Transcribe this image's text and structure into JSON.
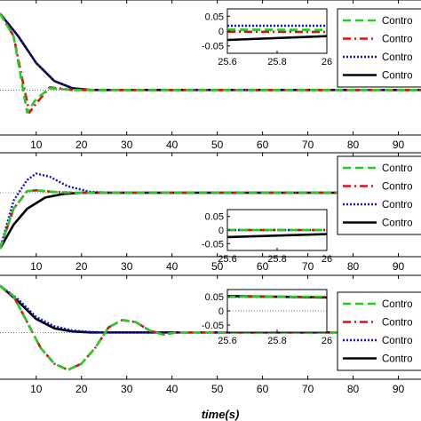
{
  "colors": {
    "series": [
      "#22cc22",
      "#dd1111",
      "#1111cc",
      "#000000"
    ],
    "axis": "#000000",
    "ref": "#555555"
  },
  "chart_data": [
    {
      "type": "line",
      "panel": 1,
      "xlim": [
        2,
        95
      ],
      "xticks": [
        "10",
        "20",
        "30",
        "40",
        "50",
        "60",
        "70",
        "80",
        "90"
      ],
      "xtick_values": [
        10,
        20,
        30,
        40,
        50,
        60,
        70,
        80,
        90
      ],
      "ylim": [
        -0.5,
        1.0
      ],
      "grid": false,
      "legend": {
        "placement": "top-right",
        "entries": [
          "Contro",
          "Contro",
          "Contro",
          "Contro"
        ]
      },
      "series": [
        {
          "values": [
            [
              2,
              0.85
            ],
            [
              5,
              0.6
            ],
            [
              8,
              -0.25
            ],
            [
              10,
              -0.1
            ],
            [
              13,
              0.02
            ],
            [
              18,
              0.0
            ],
            [
              95,
              0.0
            ]
          ]
        },
        {
          "values": [
            [
              2,
              0.85
            ],
            [
              5,
              0.6
            ],
            [
              7,
              0.1
            ],
            [
              8.5,
              -0.25
            ],
            [
              10,
              -0.15
            ],
            [
              13,
              0.03
            ],
            [
              18,
              0.0
            ],
            [
              95,
              0.0
            ]
          ]
        },
        {
          "values": [
            [
              2,
              0.85
            ],
            [
              6,
              0.6
            ],
            [
              10,
              0.3
            ],
            [
              14,
              0.1
            ],
            [
              18,
              0.02
            ],
            [
              22,
              0.0
            ],
            [
              95,
              0.0
            ]
          ]
        },
        {
          "values": [
            [
              2,
              0.85
            ],
            [
              6,
              0.6
            ],
            [
              10,
              0.3
            ],
            [
              14,
              0.1
            ],
            [
              18,
              0.02
            ],
            [
              22,
              0.0
            ],
            [
              95,
              0.0
            ]
          ]
        }
      ],
      "inset": {
        "xticks": [
          "25.6",
          "25.8",
          "26"
        ],
        "xtick_values": [
          25.6,
          25.8,
          26.0
        ],
        "xlim": [
          25.6,
          26.0
        ],
        "yticks": [
          "0.05",
          "0",
          "-0.05"
        ],
        "ytick_values": [
          0.05,
          0,
          -0.05
        ],
        "ylim": [
          -0.075,
          0.075
        ],
        "series": [
          {
            "values": [
              [
                25.6,
                0.005
              ],
              [
                26.0,
                0.004
              ]
            ]
          },
          {
            "values": [
              [
                25.6,
                -0.002
              ],
              [
                26.0,
                -0.003
              ]
            ]
          },
          {
            "values": [
              [
                25.6,
                0.018
              ],
              [
                26.0,
                0.018
              ]
            ]
          },
          {
            "values": [
              [
                25.6,
                -0.03
              ],
              [
                26.0,
                -0.017
              ]
            ]
          }
        ]
      }
    },
    {
      "type": "line",
      "panel": 2,
      "xlim": [
        2,
        95
      ],
      "xticks": [
        "10",
        "20",
        "30",
        "40",
        "50",
        "60",
        "70",
        "80",
        "90"
      ],
      "xtick_values": [
        10,
        20,
        30,
        40,
        50,
        60,
        70,
        80,
        90
      ],
      "ylim": [
        -0.8,
        0.5
      ],
      "grid": false,
      "legend": {
        "placement": "top-right",
        "entries": [
          "Contro",
          "Contro",
          "Contro",
          "Contro"
        ]
      },
      "series": [
        {
          "values": [
            [
              2,
              -0.7
            ],
            [
              5,
              -0.2
            ],
            [
              8,
              0.02
            ],
            [
              10,
              0.03
            ],
            [
              14,
              0.01
            ],
            [
              18,
              0.0
            ],
            [
              95,
              0.0
            ]
          ]
        },
        {
          "values": [
            [
              2,
              -0.7
            ],
            [
              5,
              -0.2
            ],
            [
              8,
              0.02
            ],
            [
              10,
              0.03
            ],
            [
              14,
              0.01
            ],
            [
              18,
              0.0
            ],
            [
              95,
              0.0
            ]
          ]
        },
        {
          "values": [
            [
              2,
              -0.7
            ],
            [
              5,
              -0.1
            ],
            [
              8,
              0.16
            ],
            [
              10,
              0.24
            ],
            [
              13,
              0.2
            ],
            [
              17,
              0.08
            ],
            [
              22,
              0.01
            ],
            [
              27,
              0.0
            ],
            [
              95,
              0.0
            ]
          ]
        },
        {
          "values": [
            [
              2,
              -0.7
            ],
            [
              5,
              -0.4
            ],
            [
              8,
              -0.2
            ],
            [
              12,
              -0.06
            ],
            [
              16,
              -0.015
            ],
            [
              20,
              0.0
            ],
            [
              95,
              0.0
            ]
          ]
        }
      ],
      "inset": {
        "xticks": [
          "25.6",
          "25.8",
          "26"
        ],
        "xtick_values": [
          25.6,
          25.8,
          26.0
        ],
        "xlim": [
          25.6,
          26.0
        ],
        "yticks": [
          "0.05",
          "0",
          "-0.05"
        ],
        "ytick_values": [
          0.05,
          0,
          -0.05
        ],
        "ylim": [
          -0.075,
          0.075
        ],
        "series": [
          {
            "values": [
              [
                25.6,
                0.0
              ],
              [
                26.0,
                0.0
              ]
            ]
          },
          {
            "values": [
              [
                25.6,
                0.0
              ],
              [
                26.0,
                0.0
              ]
            ]
          },
          {
            "values": [
              [
                25.6,
                0.0
              ],
              [
                26.0,
                0.0
              ]
            ]
          },
          {
            "values": [
              [
                25.6,
                -0.026
              ],
              [
                26.0,
                -0.015
              ]
            ]
          }
        ]
      }
    },
    {
      "type": "line",
      "panel": 3,
      "xlim": [
        2,
        95
      ],
      "xticks": [
        "10",
        "20",
        "30",
        "40",
        "50",
        "60",
        "70",
        "80",
        "90"
      ],
      "xtick_values": [
        10,
        20,
        30,
        40,
        50,
        60,
        70,
        80,
        90
      ],
      "xlabel": "time(s)",
      "ylim": [
        -0.45,
        0.55
      ],
      "grid": false,
      "legend": {
        "placement": "top-right",
        "entries": [
          "Contro",
          "Contro",
          "Contro",
          "Contro"
        ]
      },
      "series": [
        {
          "values": [
            [
              2,
              0.45
            ],
            [
              5,
              0.35
            ],
            [
              8,
              0.1
            ],
            [
              11,
              -0.15
            ],
            [
              14,
              -0.3
            ],
            [
              17,
              -0.36
            ],
            [
              20,
              -0.3
            ],
            [
              23,
              -0.15
            ],
            [
              26,
              0.05
            ],
            [
              29,
              0.12
            ],
            [
              32,
              0.1
            ],
            [
              35,
              0.02
            ],
            [
              38,
              -0.02
            ],
            [
              41,
              0.0
            ],
            [
              95,
              0.0
            ]
          ]
        },
        {
          "values": [
            [
              2,
              0.45
            ],
            [
              5,
              0.35
            ],
            [
              8,
              0.1
            ],
            [
              11,
              -0.15
            ],
            [
              14,
              -0.3
            ],
            [
              17,
              -0.36
            ],
            [
              20,
              -0.3
            ],
            [
              23,
              -0.15
            ],
            [
              26,
              0.05
            ],
            [
              29,
              0.12
            ],
            [
              32,
              0.1
            ],
            [
              35,
              0.02
            ],
            [
              38,
              -0.02
            ],
            [
              41,
              0.0
            ],
            [
              95,
              0.0
            ]
          ]
        },
        {
          "values": [
            [
              2,
              0.45
            ],
            [
              6,
              0.32
            ],
            [
              10,
              0.15
            ],
            [
              14,
              0.06
            ],
            [
              18,
              0.02
            ],
            [
              22,
              0.005
            ],
            [
              26,
              0.0
            ],
            [
              95,
              0.0
            ]
          ]
        },
        {
          "values": [
            [
              2,
              0.45
            ],
            [
              6,
              0.3
            ],
            [
              10,
              0.13
            ],
            [
              14,
              0.04
            ],
            [
              18,
              0.01
            ],
            [
              22,
              0.0
            ],
            [
              95,
              0.0
            ]
          ]
        }
      ],
      "inset": {
        "xticks": [
          "25.6",
          "25.8",
          "26"
        ],
        "xtick_values": [
          25.6,
          25.8,
          26.0
        ],
        "xlim": [
          25.6,
          26.0
        ],
        "yticks": [
          "0.05",
          "0",
          "-0.05"
        ],
        "ytick_values": [
          0.05,
          0,
          -0.05
        ],
        "ylim": [
          -0.075,
          0.075
        ],
        "series": [
          {
            "values": [
              [
                25.6,
                0.05
              ],
              [
                26.0,
                0.05
              ]
            ]
          },
          {
            "values": [
              [
                25.6,
                0.05
              ],
              [
                26.0,
                0.049
              ]
            ]
          },
          {
            "values": [
              [
                25.6,
                0.05
              ],
              [
                26.0,
                0.049
              ]
            ]
          },
          {
            "values": [
              [
                25.6,
                0.052
              ],
              [
                26.0,
                0.047
              ]
            ]
          }
        ]
      }
    }
  ]
}
